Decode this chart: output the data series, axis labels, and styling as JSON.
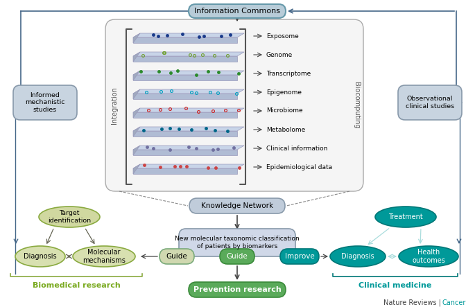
{
  "title": "Information Commons",
  "layers": [
    "Exposome",
    "Genome",
    "Transcriptome",
    "Epigenome",
    "Microbiome",
    "Metabolome",
    "Clinical information",
    "Epidemiological data"
  ],
  "layer_dot_colors": [
    "#1a3a8a",
    "#70a030",
    "#2a8a2a",
    "#00a0c0",
    "#cc2222",
    "#006688",
    "#7070a0",
    "#cc4444"
  ],
  "layer_open": [
    false,
    true,
    false,
    true,
    true,
    false,
    false,
    false
  ],
  "sidebar_left": "Integration",
  "sidebar_right": "Biocomputing",
  "knowledge_network": "Knowledge Network",
  "new_mol_text": "New molecular taxonomic classification\nof patients by biomarkers",
  "informed_text": "Informed\nmechanistic\nstudies",
  "observational_text": "Observational\nclinical studies",
  "target_id_text": "Target\nidentification",
  "diagnosis_left_text": "Diagnosis",
  "mol_mech_text": "Molecular\nmechanisms",
  "guide1_text": "Guide",
  "guide2_text": "Guide",
  "improve_text": "Improve",
  "diagnosis_right_text": "Diagnosis",
  "health_outcomes_text": "Health\noutcomes",
  "treatment_text": "Treatment",
  "biomedical_text": "Biomedical research",
  "prevention_text": "Prevention research",
  "clinical_med_text": "Clinical medicine",
  "color_info_commons_face": "#b8ccd8",
  "color_info_commons_edge": "#6699aa",
  "color_knowledge_face": "#c0ccda",
  "color_knowledge_edge": "#8899aa",
  "color_new_mol_face": "#d0d8e8",
  "color_new_mol_edge": "#8899aa",
  "color_box_face": "#f5f5f5",
  "color_box_edge": "#aaaaaa",
  "color_informed_face": "#c8d4e0",
  "color_informed_edge": "#8899aa",
  "color_observational_face": "#c8d4e0",
  "color_observational_edge": "#8899aa",
  "color_target_face": "#d0d8a0",
  "color_target_edge": "#8aaa40",
  "color_bio_node_face": "#d8e0b0",
  "color_bio_node_edge": "#8aaa40",
  "color_guide1_face": "#d0d8b0",
  "color_guide1_edge": "#7aaa7a",
  "color_guide2_face": "#5aaa5a",
  "color_guide2_edge": "#3a8a3a",
  "color_improve_face": "#009999",
  "color_improve_edge": "#007777",
  "color_teal_face": "#009999",
  "color_teal_edge": "#007777",
  "color_prev_face": "#5aaa5a",
  "color_prev_edge": "#3a8a3a",
  "color_biomedical_label": "#7aaa20",
  "color_prevention_label": "#ffffff",
  "color_clinical_label": "#009999",
  "color_plate_top": "#c8d4e8",
  "color_plate_bot": "#b0bcd4",
  "color_plate_side": "#a0aabf",
  "color_plate_edge": "#9999bb",
  "color_arrow_main": "#444444",
  "color_arrow_ic": "#446688",
  "color_bracket_bio": "#8aaa40",
  "color_bracket_clin": "#007777",
  "figsize": [
    6.85,
    4.43
  ],
  "dpi": 100
}
